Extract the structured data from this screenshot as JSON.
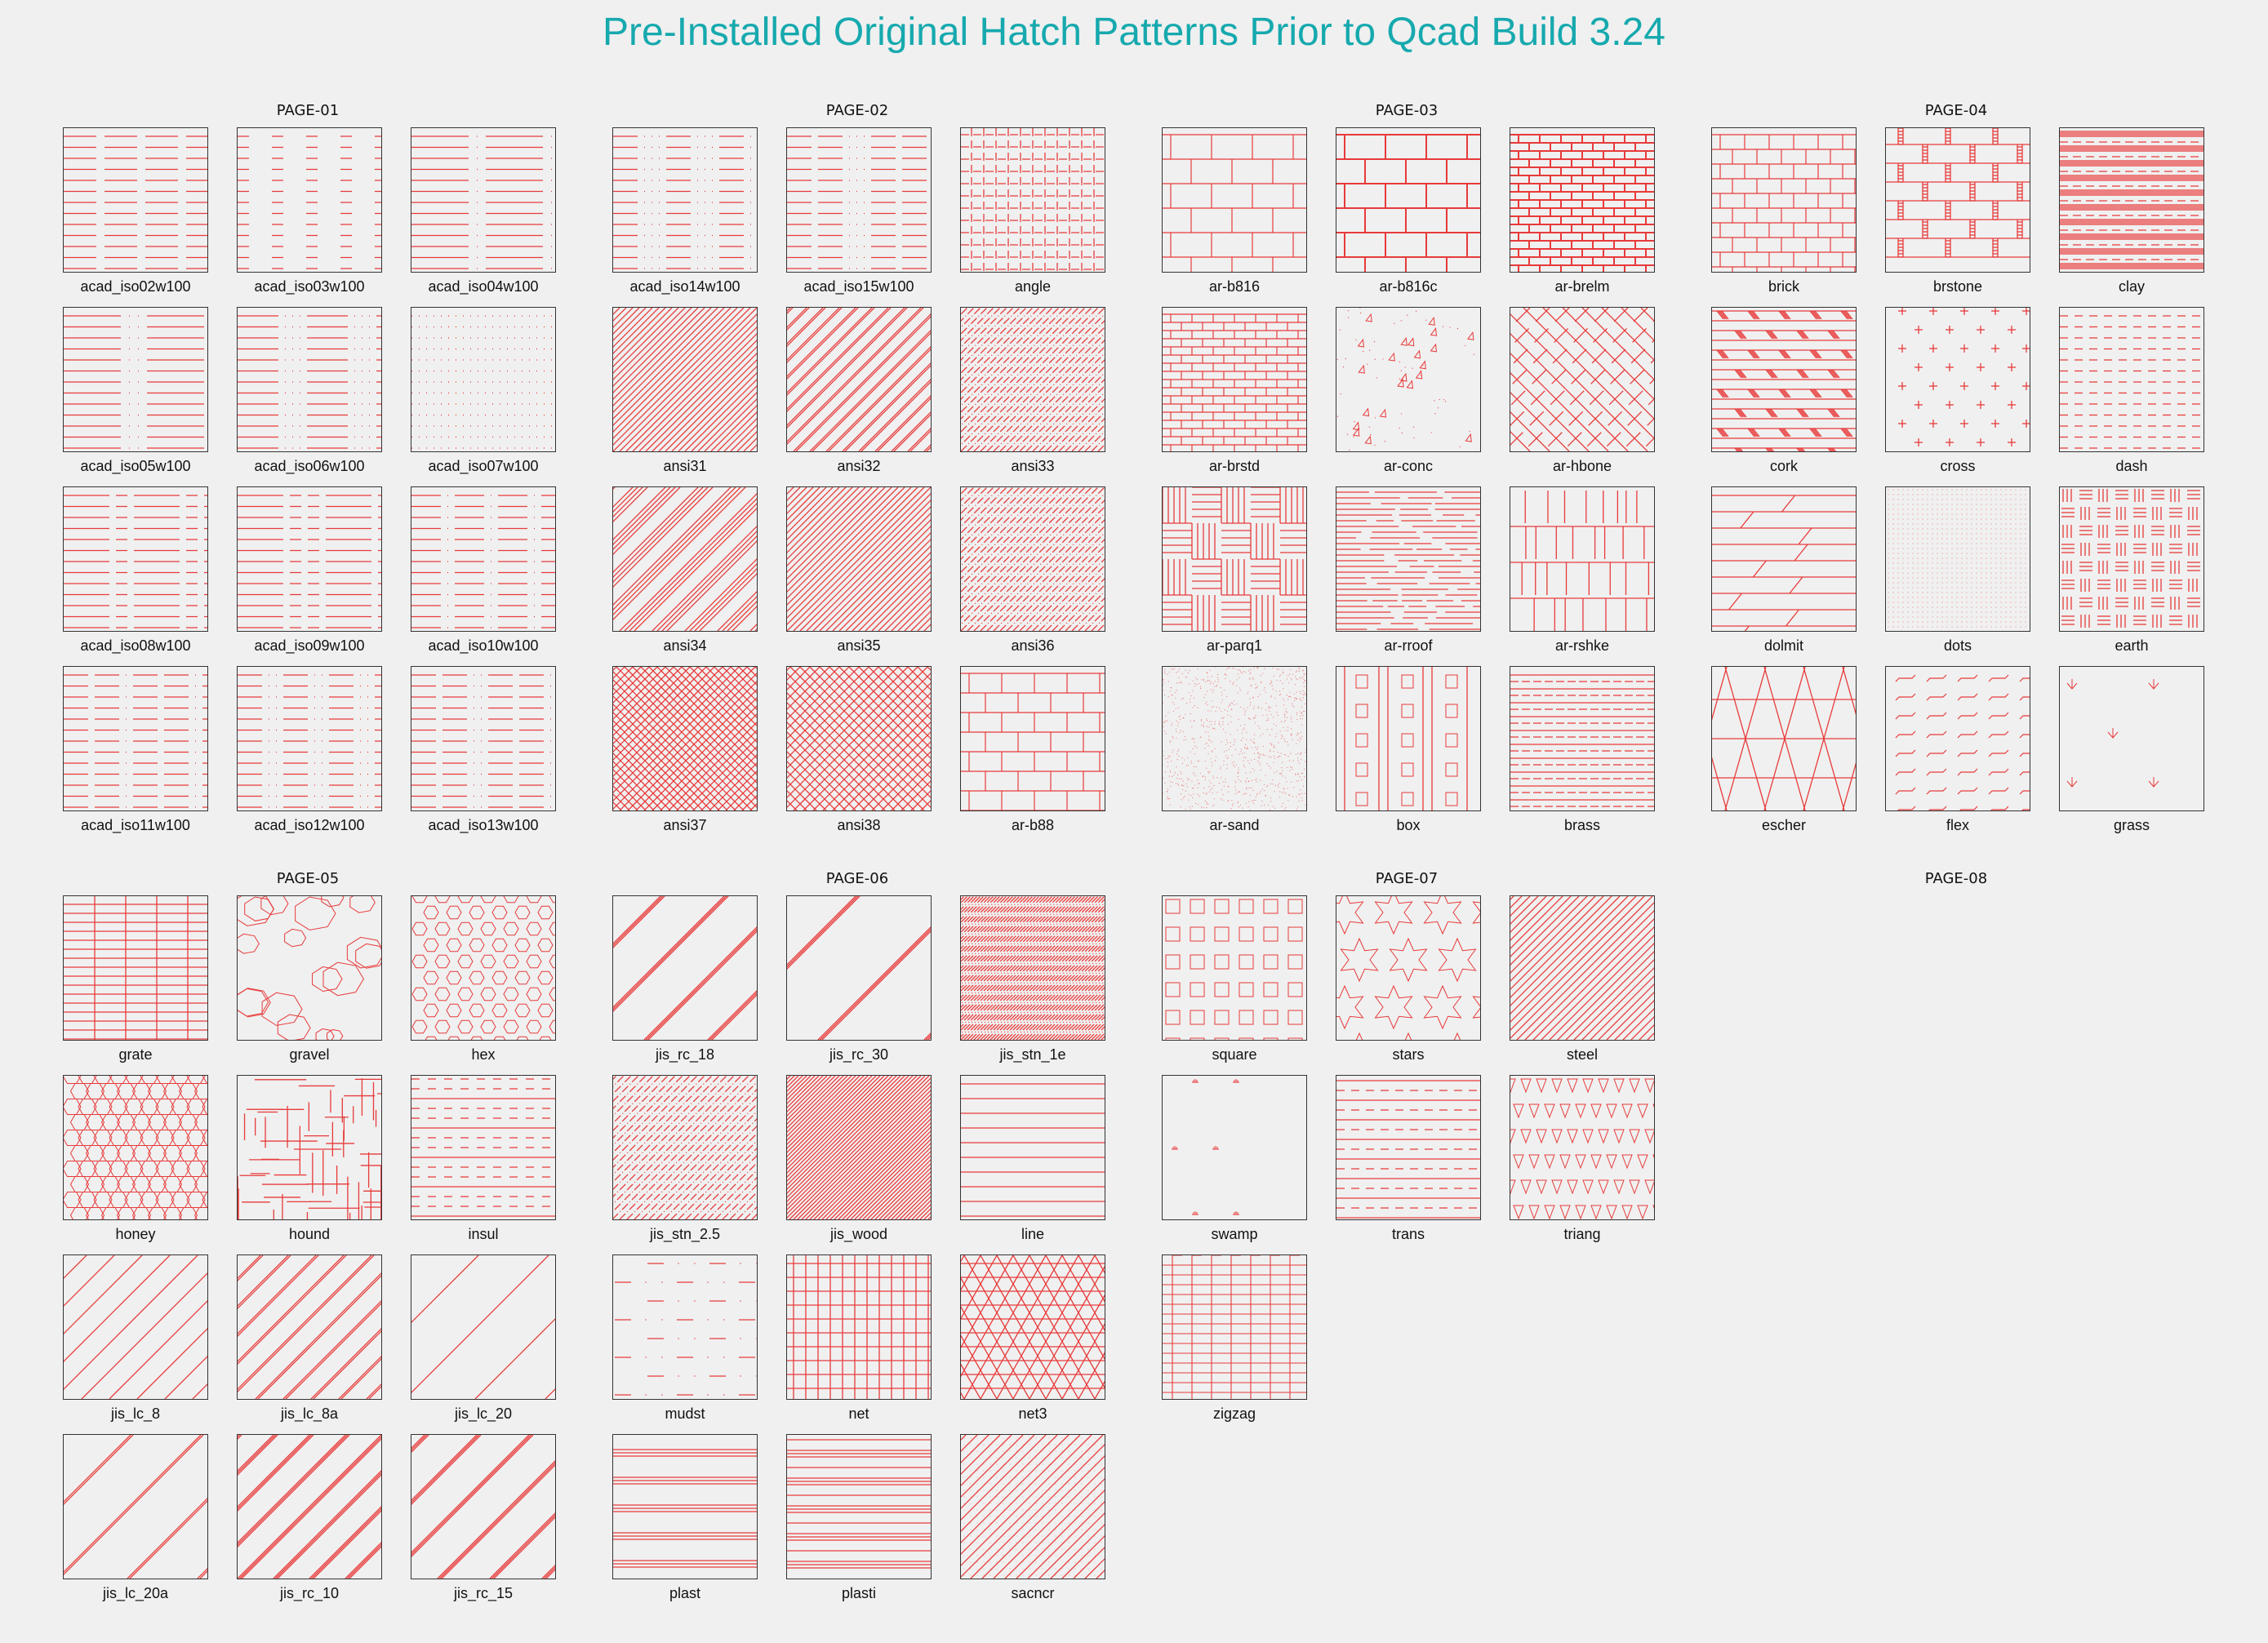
{
  "title": "Pre-Installed Original Hatch Patterns Prior to Qcad Build 3.24",
  "colors": {
    "title": "#16a9ae",
    "hatch": "#e83a3a",
    "background": "#f0f0f0",
    "border": "#333333"
  },
  "pages": [
    {
      "label": "PAGE-01",
      "patterns": [
        {
          "name": "acad_iso02w100",
          "kind": "dash",
          "a": "40,10"
        },
        {
          "name": "acad_iso03w100",
          "kind": "dash",
          "a": "14,28,0,0"
        },
        {
          "name": "acad_iso04w100",
          "kind": "dash",
          "a": "70,10,1,10"
        },
        {
          "name": "acad_iso05w100",
          "kind": "dash",
          "a": "70,10,1,10,1,10"
        },
        {
          "name": "acad_iso06w100",
          "kind": "dash",
          "a": "50,8,1,8,1,8,1,8"
        },
        {
          "name": "acad_iso07w100",
          "kind": "dash",
          "a": "1,8"
        },
        {
          "name": "acad_iso08w100",
          "kind": "dash",
          "a": "56,8,14,8"
        },
        {
          "name": "acad_iso09w100",
          "kind": "dash",
          "a": "56,8,14,8,14,8"
        },
        {
          "name": "acad_iso10w100",
          "kind": "dash",
          "a": "36,8,1,8"
        },
        {
          "name": "acad_iso11w100",
          "kind": "dash",
          "a": "30,8,30,8,1,8"
        },
        {
          "name": "acad_iso12w100",
          "kind": "dash",
          "a": "30,8,1,8,1,8"
        },
        {
          "name": "acad_iso13w100",
          "kind": "dash",
          "a": "30,8,30,8,1,8,1,8"
        }
      ]
    },
    {
      "label": "PAGE-02",
      "patterns": [
        {
          "name": "acad_iso14w100",
          "kind": "dash",
          "a": "30,8,1,8,1,8,1,8"
        },
        {
          "name": "acad_iso15w100",
          "kind": "dash",
          "a": "30,8,30,8,1,8,1,8,1,8"
        },
        {
          "name": "angle",
          "kind": "angle"
        },
        {
          "name": "ansi31",
          "kind": "diag",
          "a": "8"
        },
        {
          "name": "ansi32",
          "kind": "diag2",
          "a": "20"
        },
        {
          "name": "ansi33",
          "kind": "diagdash",
          "a": "8"
        },
        {
          "name": "ansi34",
          "kind": "diag4",
          "a": "40"
        },
        {
          "name": "ansi35",
          "kind": "diag",
          "a": "8"
        },
        {
          "name": "ansi36",
          "kind": "diagdash",
          "a": "8"
        },
        {
          "name": "ansi37",
          "kind": "cross45",
          "a": "10"
        },
        {
          "name": "ansi38",
          "kind": "cross45",
          "a": "12"
        },
        {
          "name": "ar-b88",
          "kind": "brick",
          "a": "40,24"
        }
      ]
    },
    {
      "label": "PAGE-03",
      "patterns": [
        {
          "name": "ar-b816",
          "kind": "brick",
          "a": "50,30"
        },
        {
          "name": "ar-b816c",
          "kind": "brick2",
          "a": "50,30"
        },
        {
          "name": "ar-brelm",
          "kind": "brick2",
          "a": "26,10"
        },
        {
          "name": "ar-brstd",
          "kind": "brick",
          "a": "26,10"
        },
        {
          "name": "ar-conc",
          "kind": "conc"
        },
        {
          "name": "ar-hbone",
          "kind": "hbone"
        },
        {
          "name": "ar-parq1",
          "kind": "parq"
        },
        {
          "name": "ar-rroof",
          "kind": "rroof"
        },
        {
          "name": "ar-rshke",
          "kind": "rshke"
        },
        {
          "name": "ar-sand",
          "kind": "sand"
        },
        {
          "name": "box",
          "kind": "box"
        },
        {
          "name": "brass",
          "kind": "brass"
        }
      ]
    },
    {
      "label": "PAGE-04",
      "patterns": [
        {
          "name": "brick",
          "kind": "brick",
          "a": "30,18"
        },
        {
          "name": "brstone",
          "kind": "brstone"
        },
        {
          "name": "clay",
          "kind": "clay"
        },
        {
          "name": "cork",
          "kind": "cork"
        },
        {
          "name": "cross",
          "kind": "cross"
        },
        {
          "name": "dash",
          "kind": "dash",
          "a": "10,8"
        },
        {
          "name": "dolmit",
          "kind": "dolmit"
        },
        {
          "name": "dots",
          "kind": "dots"
        },
        {
          "name": "earth",
          "kind": "earth"
        },
        {
          "name": "escher",
          "kind": "escher"
        },
        {
          "name": "flex",
          "kind": "flex"
        },
        {
          "name": "grass",
          "kind": "grass"
        }
      ]
    },
    {
      "label": "PAGE-05",
      "patterns": [
        {
          "name": "grate",
          "kind": "grate"
        },
        {
          "name": "gravel",
          "kind": "gravel"
        },
        {
          "name": "hex",
          "kind": "hex"
        },
        {
          "name": "honey",
          "kind": "honey"
        },
        {
          "name": "hound",
          "kind": "hound"
        },
        {
          "name": "insul",
          "kind": "insul"
        },
        {
          "name": "jis_lc_8",
          "kind": "diag",
          "a": "34"
        },
        {
          "name": "jis_lc_8a",
          "kind": "diag2",
          "a": "34"
        },
        {
          "name": "jis_lc_20",
          "kind": "diag",
          "a": "86"
        },
        {
          "name": "jis_lc_20a",
          "kind": "diag2",
          "a": "86"
        },
        {
          "name": "jis_rc_10",
          "kind": "diag3",
          "a": "44"
        },
        {
          "name": "jis_rc_15",
          "kind": "diag3",
          "a": "64"
        }
      ]
    },
    {
      "label": "PAGE-06",
      "patterns": [
        {
          "name": "jis_rc_18",
          "kind": "diag3",
          "a": "78"
        },
        {
          "name": "jis_rc_30",
          "kind": "diag3",
          "a": "130"
        },
        {
          "name": "jis_stn_1e",
          "kind": "diagdash",
          "a": "4"
        },
        {
          "name": "jis_stn_2.5",
          "kind": "diagdash",
          "a": "9"
        },
        {
          "name": "jis_wood",
          "kind": "diag",
          "a": "5"
        },
        {
          "name": "line",
          "kind": "hline",
          "a": "18"
        },
        {
          "name": "mudst",
          "kind": "mudst"
        },
        {
          "name": "net",
          "kind": "grid",
          "a": "15"
        },
        {
          "name": "net3",
          "kind": "net3"
        },
        {
          "name": "plast",
          "kind": "plast"
        },
        {
          "name": "plasti",
          "kind": "plasti"
        },
        {
          "name": "sacncr",
          "kind": "sacncr"
        }
      ]
    },
    {
      "label": "PAGE-07",
      "patterns": [
        {
          "name": "square",
          "kind": "square"
        },
        {
          "name": "stars",
          "kind": "stars"
        },
        {
          "name": "steel",
          "kind": "diag",
          "a": "10"
        },
        {
          "name": "swamp",
          "kind": "swamp"
        },
        {
          "name": "trans",
          "kind": "trans"
        },
        {
          "name": "triang",
          "kind": "triang"
        },
        {
          "name": "zigzag",
          "kind": "zigzag"
        }
      ]
    },
    {
      "label": "PAGE-08",
      "patterns": []
    }
  ]
}
